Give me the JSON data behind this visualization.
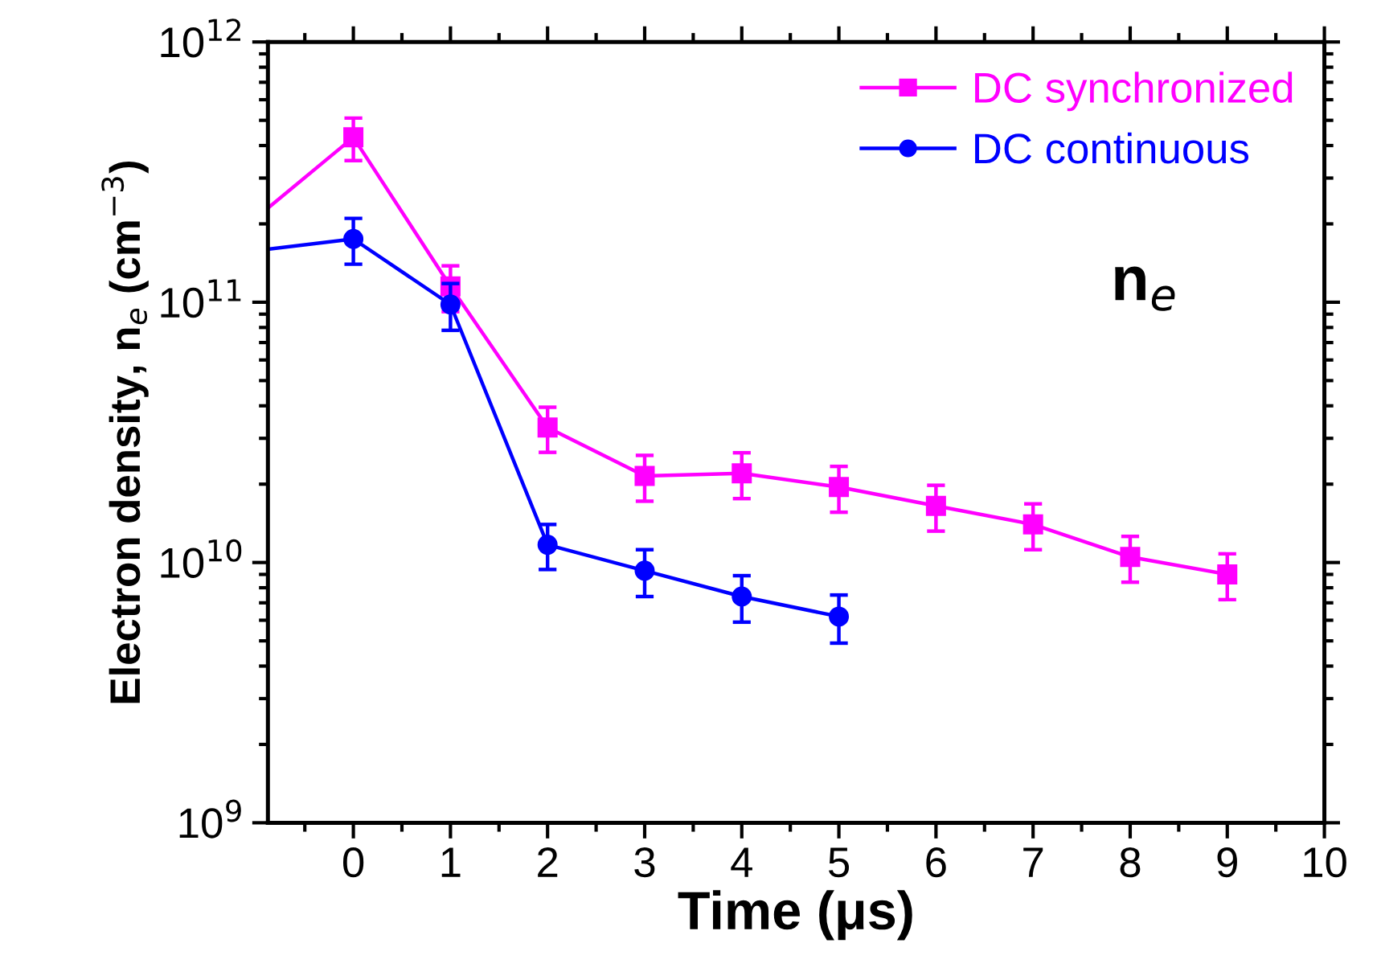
{
  "chart_data": {
    "type": "line",
    "xlabel": "Time (μs)",
    "ylabel": "Electron density, n$_{e}$ (cm$^{−3}$)",
    "xlim": [
      -0.88,
      10
    ],
    "xticks": [
      0,
      1,
      2,
      3,
      4,
      5,
      6,
      7,
      8,
      9,
      10
    ],
    "ylim": [
      1000000000.0,
      1000000000000.0
    ],
    "yticks": [
      {
        "value": 1000000000.0,
        "label": "10$^{9}$"
      },
      {
        "value": 10000000000.0,
        "label": "10$^{10}$"
      },
      {
        "value": 100000000000.0,
        "label": "10$^{11}$"
      },
      {
        "value": 1000000000000.0,
        "label": "10$^{12}$"
      }
    ],
    "log": "y",
    "grid": false,
    "legend": "top right",
    "line_style": "solid",
    "annotations": [
      "n$_{e}$"
    ],
    "series": [
      {
        "name": "DC synchronized",
        "color": "#ff00ff",
        "marker": "square",
        "x": [
          -0.88,
          0,
          1,
          2,
          3,
          4,
          5,
          6,
          7,
          8,
          9
        ],
        "values": [
          230000000000.0,
          430000000000.0,
          115000000000.0,
          33000000000.0,
          21500000000.0,
          22000000000.0,
          19500000000.0,
          16500000000.0,
          14000000000.0,
          10500000000.0,
          9000000000.0
        ],
        "errors": [
          null,
          80000000000.0,
          23000000000.0,
          6500000000.0,
          4300000000.0,
          4400000000.0,
          3900000000.0,
          3300000000.0,
          2800000000.0,
          2100000000.0,
          1800000000.0
        ]
      },
      {
        "name": "DC continuous",
        "color": "#0000ff",
        "marker": "circle",
        "x": [
          -0.88,
          0,
          1,
          2,
          3,
          4,
          5
        ],
        "values": [
          160000000000.0,
          175000000000.0,
          98000000000.0,
          11700000000.0,
          9300000000.0,
          7400000000.0,
          6200000000.0
        ],
        "errors": [
          null,
          35000000000.0,
          20000000000.0,
          2300000000.0,
          1900000000.0,
          1500000000.0,
          1300000000.0
        ]
      }
    ]
  }
}
